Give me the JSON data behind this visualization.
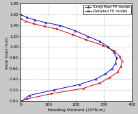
{
  "title": "",
  "xlabel": "Bending Moment (10¹N·m)",
  "ylabel": "Axial load num.",
  "xlim": [
    0,
    400
  ],
  "ylim": [
    0.0,
    1.8
  ],
  "ytick_vals": [
    0.0,
    0.2,
    0.4,
    0.6,
    0.8,
    1.0,
    1.2,
    1.4,
    1.6,
    1.8
  ],
  "ytick_labels": [
    "0.00",
    "0.20",
    "0.40",
    "0.60",
    "0.80",
    "1.00",
    "1.20",
    "1.40",
    "1.60",
    "1.80"
  ],
  "xticks": [
    0,
    100,
    200,
    300,
    400
  ],
  "simplified_x": [
    0,
    20,
    50,
    90,
    140,
    195,
    240,
    285,
    315,
    335,
    345,
    342,
    330,
    305,
    270,
    210,
    120,
    30,
    5
  ],
  "simplified_y": [
    1.6,
    1.55,
    1.5,
    1.45,
    1.4,
    1.3,
    1.2,
    1.1,
    1.0,
    0.9,
    0.8,
    0.7,
    0.6,
    0.5,
    0.4,
    0.3,
    0.2,
    0.1,
    0.0
  ],
  "detailed_x": [
    0,
    15,
    45,
    85,
    130,
    185,
    235,
    295,
    335,
    355,
    365,
    360,
    348,
    320,
    285,
    225,
    110,
    20,
    3
  ],
  "detailed_y": [
    1.52,
    1.48,
    1.43,
    1.38,
    1.33,
    1.23,
    1.13,
    1.03,
    0.93,
    0.83,
    0.73,
    0.63,
    0.53,
    0.43,
    0.33,
    0.23,
    0.13,
    0.03,
    0.0
  ],
  "simplified_color": "#0000cc",
  "detailed_color": "#cc0000",
  "background_color": "#c8c8c8",
  "plot_bg_color": "#ffffff",
  "grid_color": "#b0b0b0",
  "legend_labels": [
    "Simplified FE model",
    "Detailed FE model"
  ],
  "xlabel_fontsize": 4.5,
  "ylabel_fontsize": 4.5,
  "tick_fontsize": 4.2,
  "legend_fontsize": 4.0
}
